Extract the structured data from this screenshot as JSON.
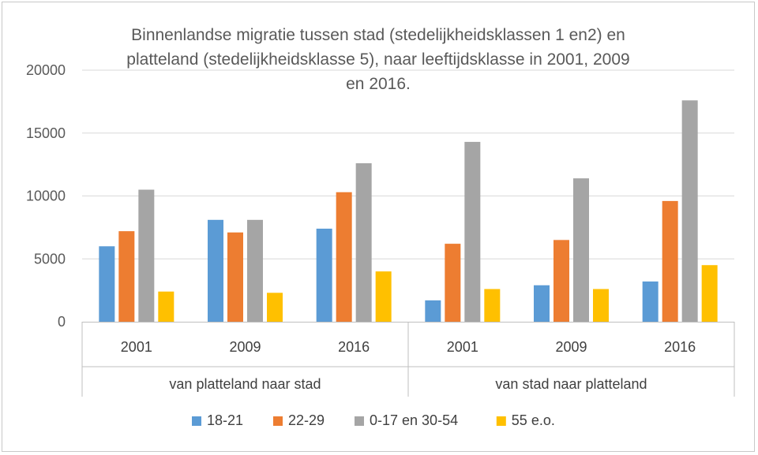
{
  "chart_data": {
    "type": "bar",
    "title_lines": [
      "Binnenlandse migratie tussen stad (stedelijkheidsklassen 1 en2) en",
      "platteland (stedelijkheidsklasse 5), naar leeftijdsklasse in 2001, 2009",
      "en 2016."
    ],
    "groups": [
      {
        "label": "van platteland naar stad",
        "categories": [
          "2001",
          "2009",
          "2016"
        ]
      },
      {
        "label": "van stad naar platteland",
        "categories": [
          "2001",
          "2009",
          "2016"
        ]
      }
    ],
    "series": [
      {
        "name": "18-21",
        "color": "#5b9bd5",
        "values": [
          6000,
          8100,
          7400,
          1700,
          2900,
          3200
        ]
      },
      {
        "name": "22-29",
        "color": "#ed7d31",
        "values": [
          7200,
          7100,
          10300,
          6200,
          6500,
          9600
        ]
      },
      {
        "name": "0-17 en 30-54",
        "color": "#a5a5a5",
        "values": [
          10500,
          8100,
          12600,
          14300,
          11400,
          17600
        ]
      },
      {
        "name": "55 e.o.",
        "color": "#ffc000",
        "values": [
          2400,
          2300,
          4000,
          2600,
          2600,
          4500
        ]
      }
    ],
    "yticks": [
      0,
      5000,
      10000,
      15000,
      20000
    ],
    "ylim": [
      0,
      20000
    ],
    "grid": true,
    "legend_position": "bottom"
  }
}
